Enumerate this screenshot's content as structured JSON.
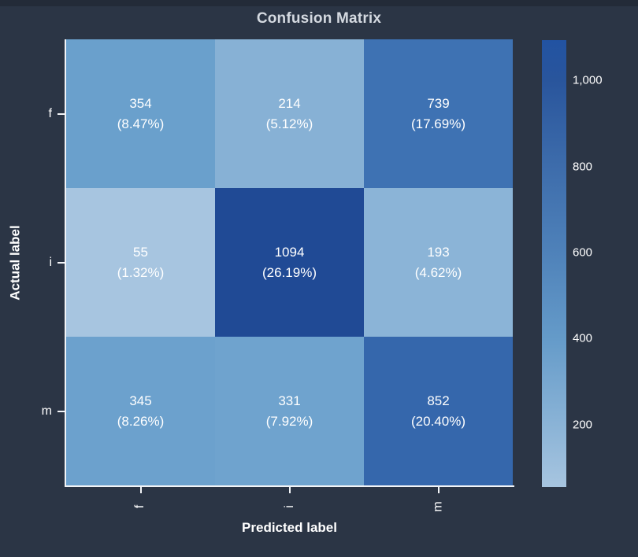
{
  "title": "Confusion Matrix",
  "colors": {
    "background": "#2b3545",
    "top_edge": "#232b38",
    "title_text": "#d4d9e0",
    "axis_text": "#ffffff",
    "cell_text": "#ffffff",
    "axis_line": "#f2f4f7"
  },
  "chart_data": {
    "type": "heatmap",
    "title": "Confusion Matrix",
    "xlabel": "Predicted label",
    "ylabel": "Actual label",
    "x_categories": [
      "f",
      "i",
      "m"
    ],
    "y_categories": [
      "f",
      "i",
      "m"
    ],
    "values": [
      [
        354,
        214,
        739
      ],
      [
        55,
        1094,
        193
      ],
      [
        345,
        331,
        852
      ]
    ],
    "percent_labels": [
      [
        "(8.47%)",
        "(5.12%)",
        "(17.69%)"
      ],
      [
        "(1.32%)",
        "(26.19%)",
        "(4.62%)"
      ],
      [
        "(8.26%)",
        "(7.92%)",
        "(20.40%)"
      ]
    ],
    "cell_colors": [
      [
        "#6aa0cc",
        "#87b1d5",
        "#3e72b3"
      ],
      [
        "#a7c5e0",
        "#204a95",
        "#8bb4d7"
      ],
      [
        "#6ca1cd",
        "#6fa3ce",
        "#3567ac"
      ]
    ],
    "grid": false,
    "legend": false,
    "colorbar": {
      "min": 55,
      "max": 1094,
      "tick_labels": [
        "1,000",
        "800",
        "600",
        "400",
        "200"
      ],
      "tick_values": [
        1000,
        800,
        600,
        400,
        200
      ],
      "gradient_stops": [
        {
          "offset": 0,
          "color": "#a7c5e0"
        },
        {
          "offset": 14,
          "color": "#8ab3d6"
        },
        {
          "offset": 33,
          "color": "#659bc9"
        },
        {
          "offset": 53,
          "color": "#4e81b9"
        },
        {
          "offset": 72,
          "color": "#3d6cab"
        },
        {
          "offset": 91,
          "color": "#29559c"
        },
        {
          "offset": 100,
          "color": "#2253a2"
        }
      ]
    }
  }
}
